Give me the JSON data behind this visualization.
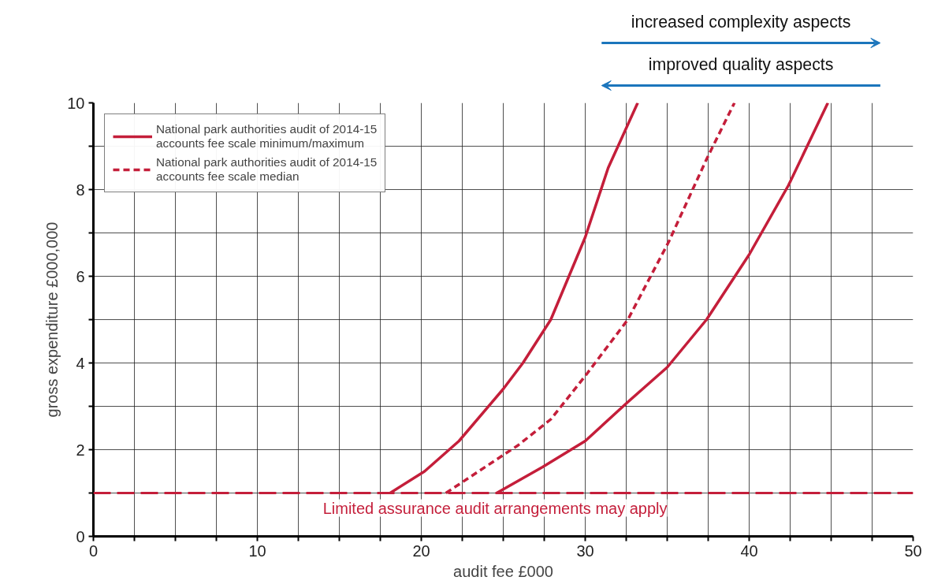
{
  "chart_data": {
    "type": "line",
    "xlabel": "audit fee £000",
    "ylabel": "gross expenditure £000,000",
    "xlim": [
      0,
      50
    ],
    "ylim": [
      0,
      10
    ],
    "xticks": [
      0,
      {
        "value": 2.5,
        "label": null
      },
      {
        "value": 5,
        "label": null
      },
      {
        "value": 7.5,
        "label": null
      },
      10,
      {
        "value": 12.5,
        "label": null
      },
      {
        "value": 15,
        "label": null
      },
      {
        "value": 17.5,
        "label": null
      },
      20,
      {
        "value": 22.5,
        "label": null
      },
      {
        "value": 25,
        "label": null
      },
      {
        "value": 27.5,
        "label": null
      },
      30,
      {
        "value": 32.5,
        "label": null
      },
      {
        "value": 35,
        "label": null
      },
      {
        "value": 37.5,
        "label": null
      },
      40,
      {
        "value": 42.5,
        "label": null
      },
      {
        "value": 45,
        "label": null
      },
      {
        "value": 47.5,
        "label": null
      },
      50
    ],
    "yticks": [
      0,
      {
        "value": 1,
        "label": null
      },
      2,
      {
        "value": 3,
        "label": null
      },
      4,
      {
        "value": 5,
        "label": null
      },
      6,
      {
        "value": 7,
        "label": null
      },
      8,
      {
        "value": 9,
        "label": null
      },
      10
    ],
    "grid": true,
    "legend": "top left",
    "marker": "none",
    "series": [
      {
        "name": "National park authorities audit of 2014-15 accounts fee scale minimum/maximum",
        "color": "#c41e3a",
        "line_style": "solid",
        "x": [
          18.1,
          20.2,
          22.3,
          25.0,
          26.2,
          27.9,
          30.0,
          31.4,
          33.2
        ],
        "values": [
          1,
          1.5,
          2.2,
          3.4,
          4.0,
          5.0,
          6.9,
          8.5,
          10
        ]
      },
      {
        "name": "National park authorities audit of 2014-15 accounts fee scale median",
        "color": "#c41e3a",
        "line_style": "dashed",
        "x": [
          21.5,
          23.5,
          25.9,
          27.9,
          30.0,
          32.6,
          35.1,
          37.4,
          39.1
        ],
        "values": [
          1,
          1.5,
          2.1,
          2.7,
          3.7,
          5.0,
          6.8,
          8.7,
          10
        ]
      },
      {
        "color": "#c41e3a",
        "line_style": "solid",
        "x": [
          24.6,
          27.4,
          30.0,
          32.6,
          35.0,
          37.4,
          40.0,
          42.4,
          44.8
        ],
        "values": [
          1,
          1.6,
          2.2,
          3.1,
          3.9,
          5.0,
          6.5,
          8.1,
          10
        ]
      }
    ],
    "ref_lines": [
      {
        "axis": "y",
        "value": 1,
        "label": "Limited assurance audit arrangements may apply",
        "color": "#c41e3a",
        "line_style": "dashed"
      }
    ],
    "annotations": [
      "increased complexity aspects",
      "improved quality aspects"
    ]
  }
}
